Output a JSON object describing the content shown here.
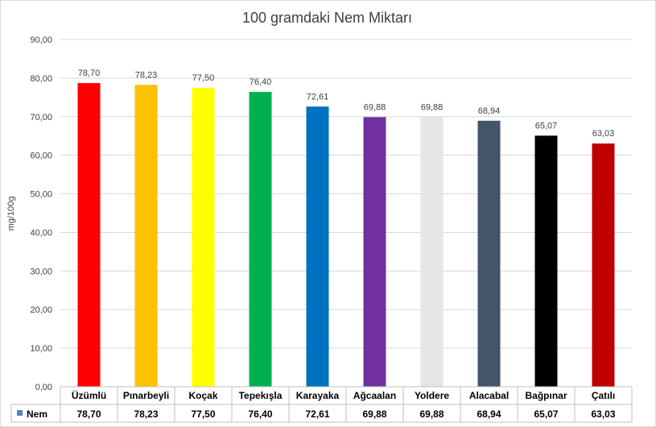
{
  "chart_data": {
    "type": "bar",
    "title": "100 gramdaki Nem Miktarı",
    "ylabel": "mg/100g",
    "xlabel": "",
    "ylim": [
      0,
      90
    ],
    "ytick_step": 10,
    "ytick_labels": [
      "0,00",
      "10,00",
      "20,00",
      "30,00",
      "40,00",
      "50,00",
      "60,00",
      "70,00",
      "80,00",
      "90,00"
    ],
    "grid": true,
    "legend": "data-table-left",
    "categories": [
      "Üzümlü",
      "Pınarbeyli",
      "Koçak",
      "Tepekışla",
      "Karayaka",
      "Ağcaalan",
      "Yoldere",
      "Alacabal",
      "Bağpınar",
      "Çatılı"
    ],
    "series": [
      {
        "name": "Nem",
        "values": [
          78.7,
          78.23,
          77.5,
          76.4,
          72.61,
          69.88,
          69.88,
          68.94,
          65.07,
          63.03
        ],
        "labels": [
          "78,70",
          "78,23",
          "77,50",
          "76,40",
          "72,61",
          "69,88",
          "69,88",
          "68,94",
          "65,07",
          "63,03"
        ],
        "colors": [
          "#ff0000",
          "#ffc000",
          "#ffff00",
          "#00b050",
          "#0070c0",
          "#7030a0",
          "#e7e6e6",
          "#44546a",
          "#000000",
          "#c00000"
        ]
      }
    ],
    "legend_key_color": "#4e86c4"
  }
}
